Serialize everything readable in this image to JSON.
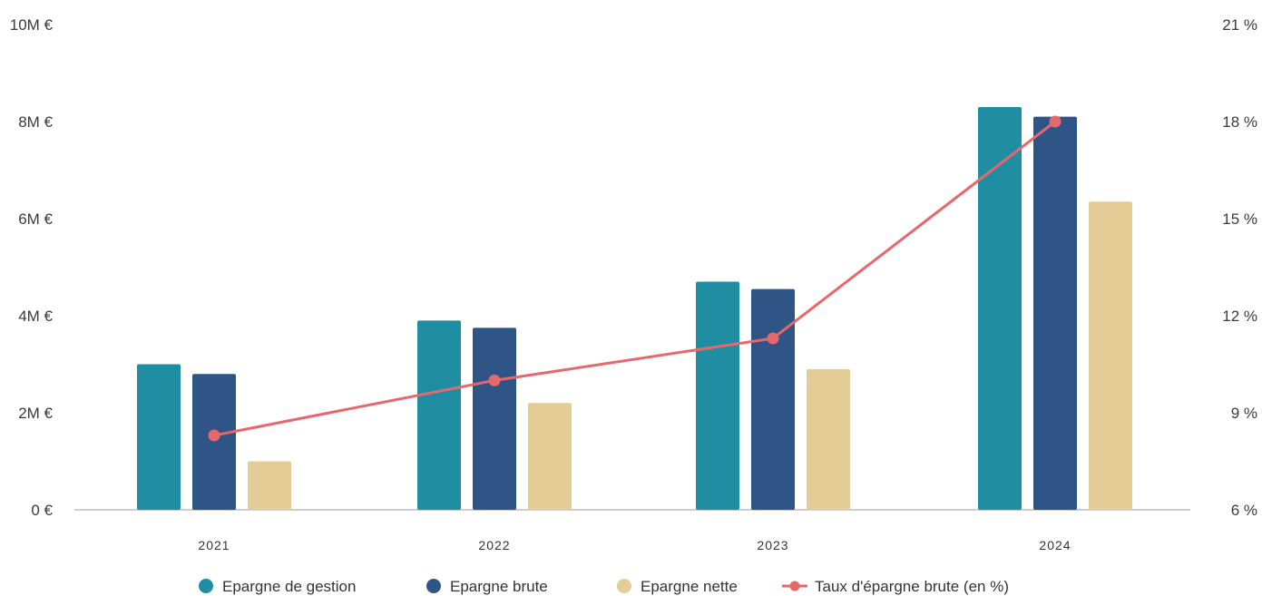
{
  "chart_data": {
    "type": "bar",
    "categories": [
      "2021",
      "2022",
      "2023",
      "2024"
    ],
    "series": [
      {
        "name": "Epargne de gestion",
        "kind": "bar",
        "color": "#1f8ea3",
        "values": [
          3.0,
          3.9,
          4.7,
          8.3
        ]
      },
      {
        "name": "Epargne brute",
        "kind": "bar",
        "color": "#2e5585",
        "values": [
          2.8,
          3.75,
          4.55,
          8.1
        ]
      },
      {
        "name": "Epargne nette",
        "kind": "bar",
        "color": "#e3cc96",
        "values": [
          1.0,
          2.2,
          2.9,
          6.35
        ]
      },
      {
        "name": "Taux d'épargne brute (en %)",
        "kind": "line",
        "axis": "right",
        "color": "#e8676c",
        "values": [
          8.3,
          10.0,
          11.3,
          18.0
        ]
      }
    ],
    "y_left": {
      "ticks": [
        "0 €",
        "2M €",
        "4M €",
        "6M €",
        "8M €",
        "10M €"
      ],
      "ylim": [
        0,
        10
      ]
    },
    "y_right": {
      "ticks": [
        "6 %",
        "9 %",
        "12 %",
        "15 %",
        "18 %",
        "21 %"
      ],
      "ylim": [
        6,
        21
      ]
    },
    "legend_position": "bottom",
    "grid": false
  }
}
